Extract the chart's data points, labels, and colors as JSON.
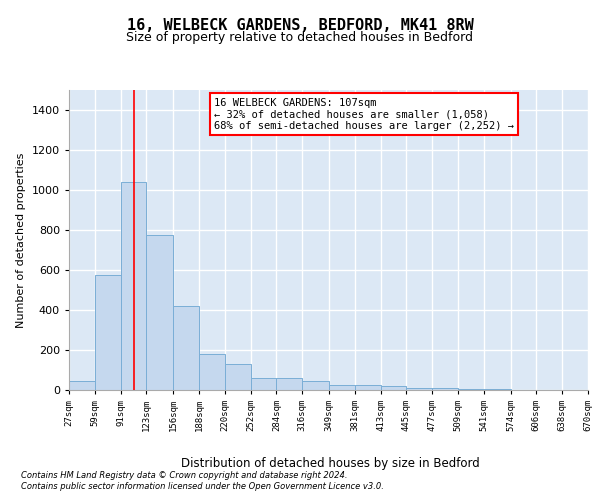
{
  "title": "16, WELBECK GARDENS, BEDFORD, MK41 8RW",
  "subtitle": "Size of property relative to detached houses in Bedford",
  "xlabel": "Distribution of detached houses by size in Bedford",
  "ylabel": "Number of detached properties",
  "bar_color": "#c5d8ee",
  "bar_edge_color": "#7aaed6",
  "background_color": "#dce8f5",
  "grid_color": "#ffffff",
  "red_line_x": 107,
  "annotation_text": "16 WELBECK GARDENS: 107sqm\n← 32% of detached houses are smaller (1,058)\n68% of semi-detached houses are larger (2,252) →",
  "footer1": "Contains HM Land Registry data © Crown copyright and database right 2024.",
  "footer2": "Contains public sector information licensed under the Open Government Licence v3.0.",
  "bin_edges": [
    27,
    59,
    91,
    123,
    156,
    188,
    220,
    252,
    284,
    316,
    349,
    381,
    413,
    445,
    477,
    509,
    541,
    574,
    606,
    638,
    670
  ],
  "values": [
    45,
    575,
    1040,
    775,
    420,
    180,
    130,
    60,
    60,
    45,
    27,
    27,
    18,
    10,
    10,
    5,
    5,
    2,
    0,
    0
  ],
  "ylim": [
    0,
    1500
  ],
  "yticks": [
    0,
    200,
    400,
    600,
    800,
    1000,
    1200,
    1400
  ]
}
